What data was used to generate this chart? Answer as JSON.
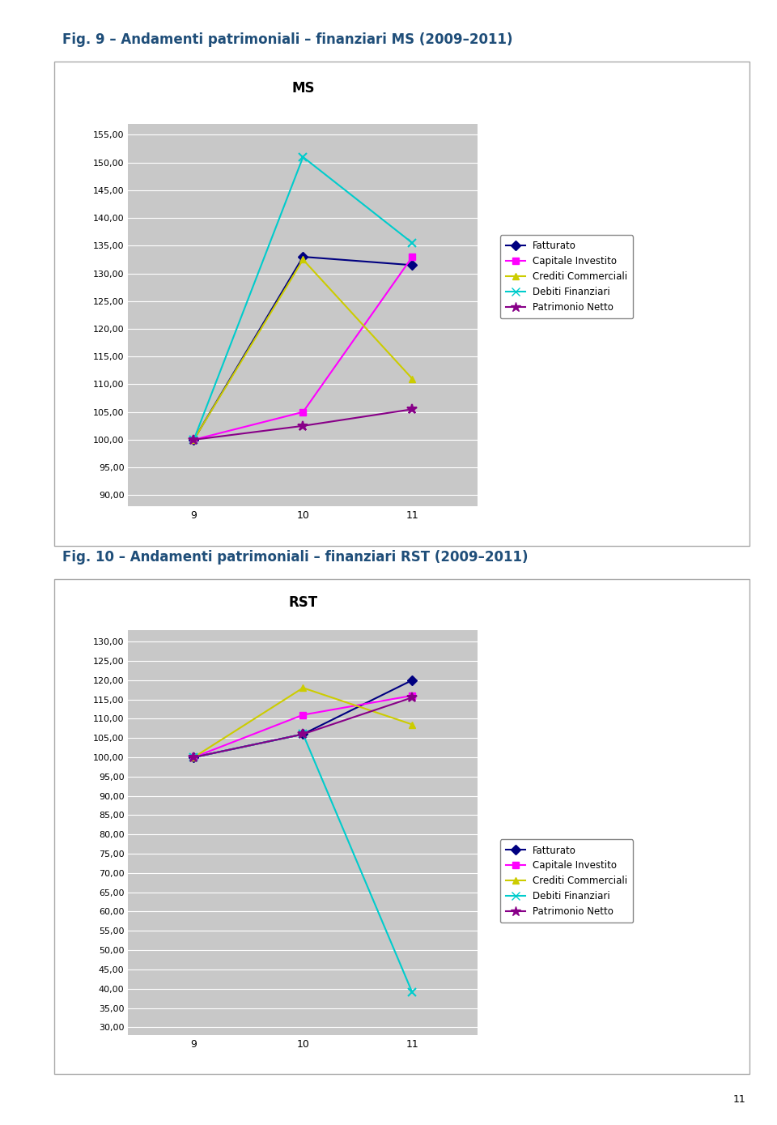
{
  "fig_title1": "Fig. 9 – Andamenti patrimoniali – finanziari MS (2009–2011)",
  "fig_title2": "Fig. 10 – Andamenti patrimoniali – finanziari RST (2009–2011)",
  "chart1_title": "MS",
  "chart2_title": "RST",
  "x_values": [
    9,
    10,
    11
  ],
  "chart1": {
    "Fatturato": [
      100.0,
      133.0,
      131.5
    ],
    "Capitale Investito": [
      100.0,
      105.0,
      133.0
    ],
    "Crediti Commerciali": [
      100.0,
      132.5,
      111.0
    ],
    "Debiti Finanziari": [
      100.0,
      151.0,
      135.5
    ],
    "Patrimonio Netto": [
      100.0,
      102.5,
      105.5
    ]
  },
  "chart2": {
    "Fatturato": [
      100.0,
      106.0,
      120.0
    ],
    "Capitale Investito": [
      100.0,
      111.0,
      116.0
    ],
    "Crediti Commerciali": [
      100.0,
      118.0,
      108.5
    ],
    "Debiti Finanziari": [
      100.0,
      106.0,
      39.0
    ],
    "Patrimonio Netto": [
      100.0,
      106.0,
      115.5
    ]
  },
  "chart1_ylim": [
    88.0,
    157.0
  ],
  "chart1_yticks": [
    90.0,
    95.0,
    100.0,
    105.0,
    110.0,
    115.0,
    120.0,
    125.0,
    130.0,
    135.0,
    140.0,
    145.0,
    150.0,
    155.0
  ],
  "chart2_ylim": [
    28.0,
    133.0
  ],
  "chart2_yticks": [
    30.0,
    35.0,
    40.0,
    45.0,
    50.0,
    55.0,
    60.0,
    65.0,
    70.0,
    75.0,
    80.0,
    85.0,
    90.0,
    95.0,
    100.0,
    105.0,
    110.0,
    115.0,
    120.0,
    125.0,
    130.0
  ],
  "line_colors": {
    "Fatturato": "#000080",
    "Capitale Investito": "#FF00FF",
    "Crediti Commerciali": "#CCCC00",
    "Debiti Finanziari": "#00CCCC",
    "Patrimonio Netto": "#880088"
  },
  "line_markers": {
    "Fatturato": "D",
    "Capitale Investito": "s",
    "Crediti Commerciali": "^",
    "Debiti Finanziari": "x",
    "Patrimonio Netto": "*"
  },
  "title_color": "#1F4E79",
  "title_fontsize": 12,
  "chart_title_fontsize": 12,
  "page_bg": "#FFFFFF",
  "plot_bg": "#C8C8C8",
  "outer_box_color": "#AAAAAA",
  "legend_series": [
    "Fatturato",
    "Capitale Investito",
    "Crediti Commerciali",
    "Debiti Finanziari",
    "Patrimonio Netto"
  ],
  "page_number": "11"
}
